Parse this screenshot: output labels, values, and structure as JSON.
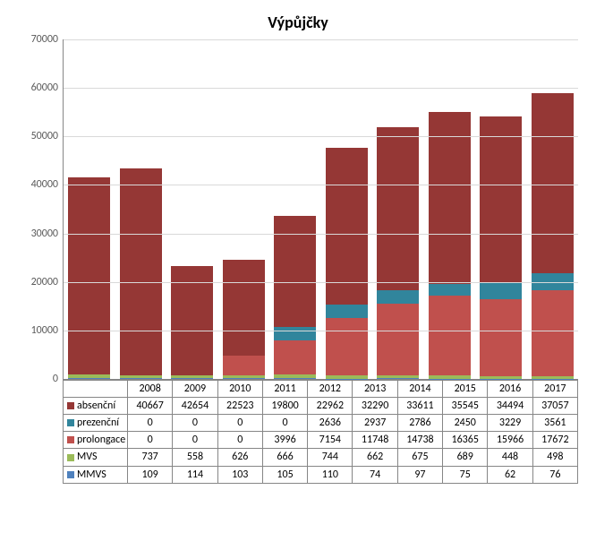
{
  "chart": {
    "type": "stacked-bar",
    "title": "Výpůjčky",
    "title_fontsize": 18,
    "background_color": "#ffffff",
    "grid_color": "#d9d9d9",
    "axis_color": "#868686",
    "label_fontsize": 12,
    "label_color": "#595959",
    "ylim": [
      0,
      70000
    ],
    "ytick_step": 10000,
    "bar_width": 0.82,
    "categories": [
      "2008",
      "2009",
      "2010",
      "2011",
      "2012",
      "2013",
      "2014",
      "2015",
      "2016",
      "2017"
    ],
    "series": [
      {
        "name": "absenční",
        "color": "#953735",
        "values": [
          40667,
          42654,
          22523,
          19800,
          22962,
          32290,
          33611,
          35545,
          34494,
          37057
        ]
      },
      {
        "name": "prezenční",
        "color": "#31859c",
        "values": [
          0,
          0,
          0,
          0,
          2636,
          2937,
          2786,
          2450,
          3229,
          3561
        ]
      },
      {
        "name": "prolongace",
        "color": "#c0504d",
        "values": [
          0,
          0,
          0,
          3996,
          7154,
          11748,
          14738,
          16365,
          15966,
          17672
        ]
      },
      {
        "name": "MVS",
        "color": "#9bbb59",
        "values": [
          737,
          558,
          626,
          666,
          744,
          662,
          675,
          689,
          448,
          498
        ]
      },
      {
        "name": "MMVS",
        "color": "#4f81bd",
        "values": [
          109,
          114,
          103,
          105,
          110,
          74,
          97,
          75,
          62,
          76
        ]
      }
    ],
    "stack_order_bottom_to_top": [
      "MMVS",
      "MVS",
      "prolongace",
      "prezenční",
      "absenční"
    ]
  }
}
